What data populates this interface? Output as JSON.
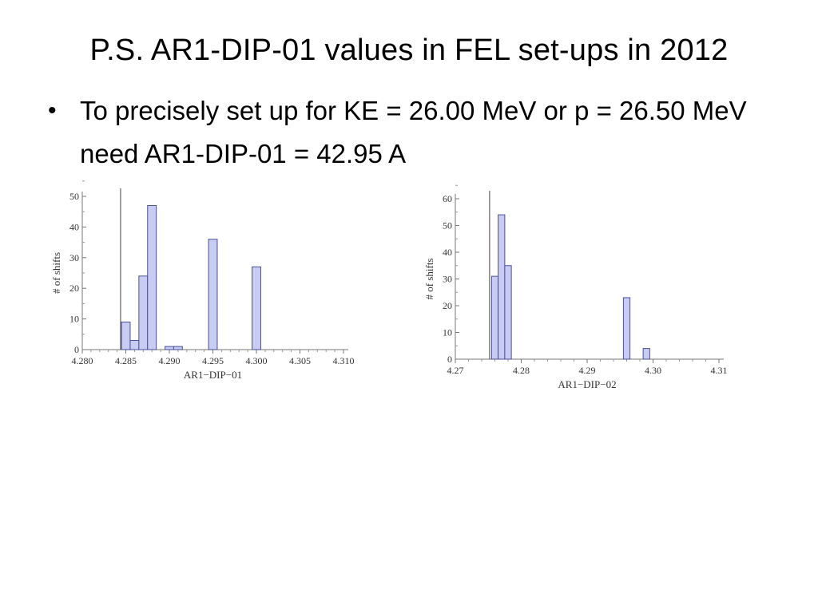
{
  "slide": {
    "title": "P.S. AR1-DIP-01 values in FEL set-ups in 2012",
    "bullets": [
      "To precisely set up for KE = 26.00 MeV or p = 26.50 MeV need AR1-DIP-01 = 42.95 A"
    ]
  },
  "chart_data": [
    {
      "type": "bar",
      "xlabel": "AR1−DIP−01",
      "ylabel": "# of shifts",
      "xlim": [
        4.28,
        4.31
      ],
      "ylim": [
        0,
        50
      ],
      "xticks": [
        "4.280",
        "4.285",
        "4.290",
        "4.295",
        "4.300",
        "4.305",
        "4.310"
      ],
      "xtick_values": [
        4.28,
        4.285,
        4.29,
        4.295,
        4.3,
        4.305,
        4.31
      ],
      "yticks": [
        0,
        10,
        20,
        30,
        40,
        50
      ],
      "reference_line_x": 4.2844,
      "bin_width": 0.001,
      "bins": [
        {
          "x0": 4.2845,
          "x1": 4.2855,
          "value": 9
        },
        {
          "x0": 4.2855,
          "x1": 4.2865,
          "value": 3
        },
        {
          "x0": 4.2865,
          "x1": 4.2875,
          "value": 24
        },
        {
          "x0": 4.2875,
          "x1": 4.2885,
          "value": 47
        },
        {
          "x0": 4.2895,
          "x1": 4.2905,
          "value": 1
        },
        {
          "x0": 4.2905,
          "x1": 4.2915,
          "value": 1
        },
        {
          "x0": 4.2945,
          "x1": 4.2955,
          "value": 36
        },
        {
          "x0": 4.2995,
          "x1": 4.3005,
          "value": 27
        }
      ],
      "bar_color": "#c8cbf2",
      "bar_stroke": "#4a4f9a"
    },
    {
      "type": "bar",
      "xlabel": "AR1−DIP−02",
      "ylabel": "# of shifts",
      "xlim": [
        4.27,
        4.31
      ],
      "ylim": [
        0,
        60
      ],
      "xticks": [
        "4.27",
        "4.28",
        "4.29",
        "4.30",
        "4.31"
      ],
      "xtick_values": [
        4.27,
        4.28,
        4.29,
        4.3,
        4.31
      ],
      "yticks": [
        0,
        10,
        20,
        30,
        40,
        50,
        60
      ],
      "reference_line_x": 4.2752,
      "bin_width": 0.001,
      "bins": [
        {
          "x0": 4.2755,
          "x1": 4.2765,
          "value": 31
        },
        {
          "x0": 4.2765,
          "x1": 4.2775,
          "value": 54
        },
        {
          "x0": 4.2775,
          "x1": 4.2785,
          "value": 35
        },
        {
          "x0": 4.2955,
          "x1": 4.2965,
          "value": 23
        },
        {
          "x0": 4.2985,
          "x1": 4.2995,
          "value": 4
        }
      ],
      "bar_color": "#c8cbf2",
      "bar_stroke": "#4a4f9a"
    }
  ]
}
